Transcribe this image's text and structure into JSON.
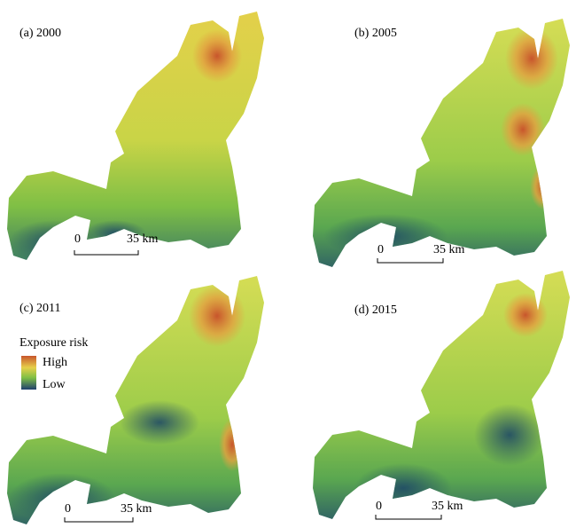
{
  "panels": [
    {
      "label": "(a) 2000",
      "scale": {
        "start": "0",
        "end": "35 km"
      }
    },
    {
      "label": "(b) 2005",
      "scale": {
        "start": "0",
        "end": "35 km"
      }
    },
    {
      "label": "(c) 2011",
      "scale": {
        "start": "0",
        "end": "35 km"
      }
    },
    {
      "label": "(d) 2015",
      "scale": {
        "start": "0",
        "end": "35 km"
      }
    }
  ],
  "legend": {
    "title": "Exposure risk",
    "high": "High",
    "low": "Low"
  }
}
